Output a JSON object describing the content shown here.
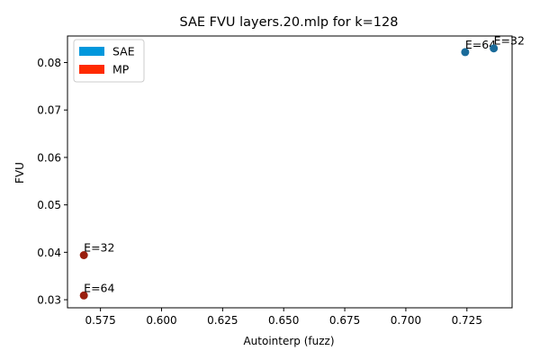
{
  "chart_data": {
    "type": "scatter",
    "title": "SAE FVU layers.20.mlp for k=128",
    "xlabel": "Autointerp (fuzz)",
    "ylabel": "FVU",
    "xlim": [
      0.5615,
      0.7435
    ],
    "ylim": [
      0.0283,
      0.0856
    ],
    "xticks": [
      0.575,
      0.6,
      0.625,
      0.65,
      0.675,
      0.7,
      0.725
    ],
    "xtick_labels": [
      "0.575",
      "0.600",
      "0.625",
      "0.650",
      "0.675",
      "0.700",
      "0.725"
    ],
    "yticks": [
      0.03,
      0.04,
      0.05,
      0.06,
      0.07,
      0.08
    ],
    "ytick_labels": [
      "0.03",
      "0.04",
      "0.05",
      "0.06",
      "0.07",
      "0.08"
    ],
    "grid": false,
    "legend": "top-left",
    "legend_entries": [
      {
        "label": "SAE",
        "color": "#0097dc"
      },
      {
        "label": "MP",
        "color": "#ff2a00"
      }
    ],
    "series": [
      {
        "name": "SAE",
        "color": "#1a6b9a",
        "points": [
          {
            "x": 0.7243,
            "y": 0.0822,
            "label": "E=64"
          },
          {
            "x": 0.736,
            "y": 0.083,
            "label": "E=32"
          }
        ]
      },
      {
        "name": "MP",
        "color": "#9a1f0e",
        "points": [
          {
            "x": 0.5682,
            "y": 0.0394,
            "label": "E=32"
          },
          {
            "x": 0.5682,
            "y": 0.0309,
            "label": "E=64"
          }
        ]
      }
    ]
  }
}
